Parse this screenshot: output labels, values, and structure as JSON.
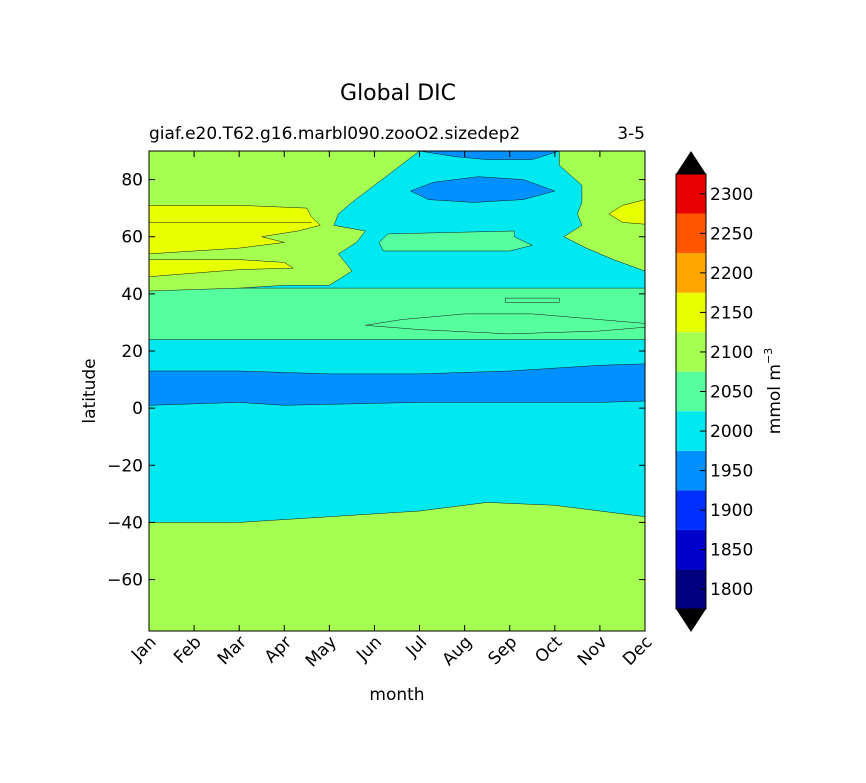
{
  "chart_data": {
    "type": "heatmap",
    "title": "Global DIC",
    "subtitle_left": "giaf.e20.T62.g16.marbl090.zooO2.sizedep2",
    "subtitle_right": "3-5",
    "xlabel": "month",
    "ylabel": "latitude",
    "x_ticks": [
      "Jan",
      "Feb",
      "Mar",
      "Apr",
      "May",
      "Jun",
      "Jul",
      "Aug",
      "Sep",
      "Oct",
      "Nov",
      "Dec"
    ],
    "y_ticks": [
      80,
      60,
      40,
      20,
      0,
      -20,
      -40,
      -60
    ],
    "y_tick_labels": [
      "80",
      "60",
      "40",
      "20",
      "0",
      "−20",
      "−40",
      "−60"
    ],
    "ylim": [
      -78,
      90
    ],
    "colorbar": {
      "label": "mmol m⁻³",
      "label_main": "mmol m",
      "label_exp": "−3",
      "ticks": [
        1800,
        1850,
        1900,
        1950,
        2000,
        2050,
        2100,
        2150,
        2200,
        2250,
        2300
      ],
      "tick_labels": [
        "1800",
        "1850",
        "1900",
        "1950",
        "2000",
        "2050",
        "2100",
        "2150",
        "2200",
        "2250",
        "2300"
      ],
      "levels": [
        1775,
        1825,
        1875,
        1925,
        1975,
        2025,
        2075,
        2125,
        2175,
        2225,
        2275,
        2325
      ],
      "colors": [
        "#000080",
        "#0000cd",
        "#0030ff",
        "#0090ff",
        "#00e9f0",
        "#55ff9d",
        "#a4ff50",
        "#e8ff00",
        "#ffa500",
        "#ff5500",
        "#e80000",
        "#800000"
      ],
      "extend": "both",
      "under_color": "#000000",
      "over_color": "#000000"
    },
    "bands": [
      {
        "level": 2175,
        "color": "#ff5500",
        "points": [
          [
            6.7,
            -78
          ],
          [
            6.7,
            -74
          ],
          [
            7.2,
            -70
          ],
          [
            8,
            -68
          ],
          [
            9,
            -66
          ],
          [
            10,
            -66
          ],
          [
            10.8,
            -68
          ],
          [
            11,
            -70
          ],
          [
            10.9,
            -73
          ],
          [
            11.2,
            -78
          ]
        ]
      },
      {
        "level": 2125,
        "color": "#ffa500",
        "points": [
          [
            1.9,
            -78
          ],
          [
            1.8,
            -70
          ],
          [
            2.3,
            -66
          ],
          [
            3,
            -63
          ],
          [
            4.2,
            -61
          ],
          [
            5.5,
            -60
          ],
          [
            7,
            -58
          ],
          [
            8,
            -57
          ],
          [
            9,
            -56
          ],
          [
            10,
            -56
          ],
          [
            10.7,
            -57
          ],
          [
            11.3,
            -60
          ],
          [
            11.8,
            -63
          ],
          [
            12,
            -64
          ],
          [
            12,
            -78
          ]
        ]
      },
      {
        "level": 2075,
        "color": "#e8ff00",
        "points": [
          [
            0,
            -78
          ],
          [
            0,
            -53
          ],
          [
            1,
            -53
          ],
          [
            2,
            -52
          ],
          [
            3,
            -50
          ],
          [
            4,
            -49
          ],
          [
            5,
            -48
          ],
          [
            6,
            -47
          ],
          [
            7,
            -46
          ],
          [
            8,
            -45
          ],
          [
            9,
            -46
          ],
          [
            10,
            -47
          ],
          [
            11,
            -48
          ],
          [
            12,
            -49
          ],
          [
            12,
            -78
          ]
        ]
      },
      {
        "level": 2025,
        "color": "#a4ff50",
        "points": [
          [
            0,
            -78
          ],
          [
            0,
            -40
          ],
          [
            2,
            -40
          ],
          [
            4,
            -38
          ],
          [
            6,
            -36
          ],
          [
            7.5,
            -33
          ],
          [
            9,
            -34
          ],
          [
            11,
            -38
          ],
          [
            12,
            -41
          ],
          [
            12,
            -78
          ]
        ]
      },
      {
        "level": 1925,
        "color": "#0090ff",
        "points": [
          [
            0,
            0
          ],
          [
            0,
            13
          ],
          [
            2,
            13
          ],
          [
            4,
            12
          ],
          [
            6,
            12
          ],
          [
            8,
            13
          ],
          [
            10,
            15
          ],
          [
            12,
            16
          ],
          [
            12,
            3
          ],
          [
            10,
            2
          ],
          [
            8,
            2
          ],
          [
            6,
            2
          ],
          [
            3,
            1
          ],
          [
            2,
            2
          ],
          [
            0,
            1
          ]
        ]
      },
      {
        "level": 1975,
        "color": "#55ff9d",
        "points": [
          [
            0,
            24
          ],
          [
            0,
            42
          ],
          [
            12,
            42
          ],
          [
            12,
            24
          ]
        ]
      },
      {
        "level": 2025,
        "color": "#a4ff50",
        "points": [
          [
            0,
            41
          ],
          [
            0,
            90
          ],
          [
            6,
            90
          ],
          [
            5.5,
            84
          ],
          [
            5,
            78
          ],
          [
            4.5,
            72
          ],
          [
            4.2,
            68
          ],
          [
            4.1,
            64
          ],
          [
            4.8,
            62
          ],
          [
            4.6,
            58
          ],
          [
            4.2,
            54
          ],
          [
            4.5,
            48
          ],
          [
            4,
            43
          ],
          [
            3,
            43
          ],
          [
            2,
            42
          ]
        ]
      },
      {
        "level": 2025,
        "color": "#a4ff50",
        "points": [
          [
            12,
            42
          ],
          [
            12,
            90
          ],
          [
            9.1,
            90
          ],
          [
            9.1,
            85
          ],
          [
            9.6,
            78
          ],
          [
            9.6,
            72
          ],
          [
            9.5,
            68
          ],
          [
            9.6,
            64
          ],
          [
            9.2,
            60
          ],
          [
            9.7,
            56
          ],
          [
            10.3,
            52
          ],
          [
            11,
            48
          ],
          [
            11.5,
            45
          ]
        ]
      },
      {
        "level": 2075,
        "color": "#e8ff00",
        "points": [
          [
            0,
            46
          ],
          [
            0,
            52
          ],
          [
            2,
            52
          ],
          [
            3,
            51
          ],
          [
            3.2,
            49
          ],
          [
            2,
            48.5
          ]
        ]
      },
      {
        "level": 2075,
        "color": "#e8ff00",
        "points": [
          [
            0,
            54
          ],
          [
            0,
            71
          ],
          [
            2,
            71
          ],
          [
            3.5,
            70
          ],
          [
            3.6,
            67
          ],
          [
            3.8,
            64
          ],
          [
            3.3,
            62
          ],
          [
            2.5,
            60
          ],
          [
            3,
            58
          ],
          [
            2,
            56
          ],
          [
            1,
            55
          ]
        ]
      },
      {
        "level": 2075,
        "color": "#e8ff00",
        "points": [
          [
            12,
            62
          ],
          [
            12,
            73
          ],
          [
            11,
            73
          ],
          [
            10.5,
            71
          ],
          [
            10.2,
            68
          ],
          [
            10.5,
            65
          ],
          [
            11.3,
            64
          ]
        ]
      },
      {
        "level": 1925,
        "color": "#0090ff",
        "points": [
          [
            6,
            90
          ],
          [
            7,
            92
          ],
          [
            8,
            92
          ],
          [
            9.1,
            90
          ],
          [
            8.5,
            87
          ],
          [
            7.5,
            87
          ],
          [
            6.8,
            88
          ]
        ]
      },
      {
        "level": 1925,
        "color": "#0090ff",
        "points": [
          [
            5.8,
            76
          ],
          [
            6.3,
            79
          ],
          [
            7.3,
            81
          ],
          [
            8.3,
            80
          ],
          [
            9,
            76
          ],
          [
            8.3,
            73
          ],
          [
            7.2,
            72
          ],
          [
            6.2,
            73
          ]
        ]
      },
      {
        "level": 1975,
        "color": "#55ff9d",
        "points": [
          [
            5.2,
            55
          ],
          [
            5.1,
            58
          ],
          [
            5.3,
            61
          ],
          [
            8.1,
            62
          ],
          [
            8.1,
            60
          ],
          [
            8.5,
            57
          ],
          [
            8,
            55
          ]
        ]
      },
      {
        "level": 1975,
        "color": "#55ff9d",
        "points": [
          [
            4.8,
            29
          ],
          [
            5.6,
            31
          ],
          [
            7,
            33
          ],
          [
            8.5,
            33
          ],
          [
            10,
            31
          ],
          [
            11.5,
            29
          ],
          [
            10,
            27
          ],
          [
            8,
            26
          ],
          [
            6,
            27.5
          ]
        ]
      },
      {
        "level": 1975,
        "color": "#55ff9d",
        "points": [
          [
            7.9,
            37
          ],
          [
            7.9,
            38.5
          ],
          [
            9.1,
            38.5
          ],
          [
            9.1,
            37
          ]
        ]
      }
    ],
    "base_color": "#00e9f0",
    "contour_lines": [
      {
        "points": [
          [
            0,
            -78
          ],
          [
            0,
            -53
          ]
        ]
      },
      {
        "points": [
          [
            0,
            65
          ],
          [
            3.6,
            65
          ]
        ]
      }
    ]
  }
}
